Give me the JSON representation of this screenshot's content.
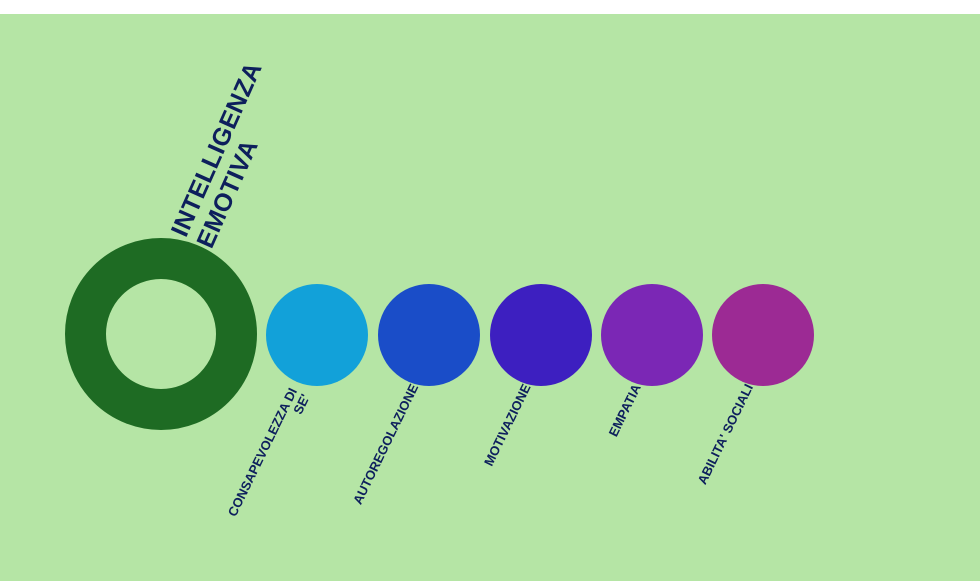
{
  "title": {
    "line1": "INTELLIGENZA",
    "line2": "EMOTIVA"
  },
  "colors": {
    "background": "#b5e5a5",
    "ring": "#1e6b23",
    "text": "#0d1f5c",
    "circles": [
      "#12a1d9",
      "#1a4dc8",
      "#3d1fc0",
      "#7b27b5",
      "#9c2a94"
    ]
  },
  "components": [
    {
      "lines": [
        "CONSAPEVOLEZZA DI",
        "SE'"
      ]
    },
    {
      "lines": [
        "AUTOREGOLAZIONE"
      ]
    },
    {
      "lines": [
        "MOTIVAZIONE"
      ]
    },
    {
      "lines": [
        "EMPATIA"
      ]
    },
    {
      "lines": [
        "ABILITA' SOCIALI"
      ]
    }
  ]
}
